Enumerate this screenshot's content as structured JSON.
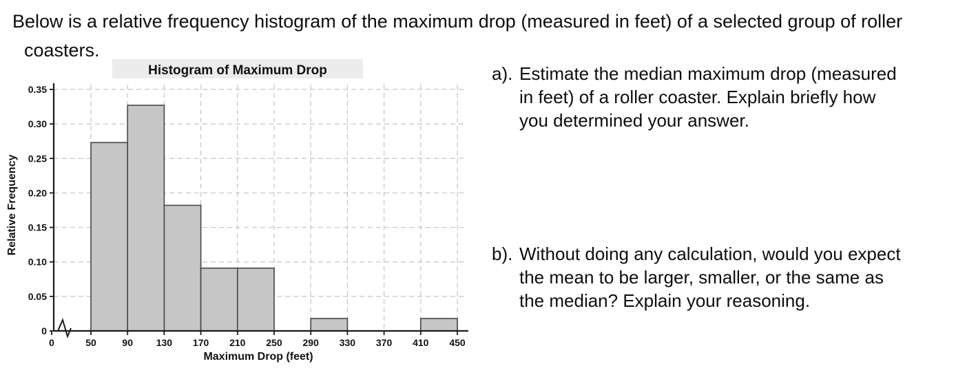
{
  "intro": {
    "lines": [
      "Below is a relative frequency histogram of the maximum drop (measured in feet) of a selected group of roller",
      "coasters."
    ]
  },
  "questions": {
    "a": {
      "label": "a).",
      "lines": [
        "Estimate the median maximum drop (measured",
        "in feet) of a roller coaster. Explain briefly how",
        "you determined your answer."
      ]
    },
    "b": {
      "label": "b).",
      "lines": [
        "Without doing any calculation, would you expect",
        "the mean to be larger, smaller, or the same as",
        "the median?  Explain your reasoning."
      ]
    }
  },
  "chart_data": {
    "type": "bar",
    "title": "Histogram of Maximum Drop",
    "xlabel": "Maximum Drop (feet)",
    "ylabel": "Relative Frequency",
    "bins": [
      {
        "range": [
          50,
          90
        ],
        "value": 0.273
      },
      {
        "range": [
          90,
          130
        ],
        "value": 0.327
      },
      {
        "range": [
          130,
          170
        ],
        "value": 0.182
      },
      {
        "range": [
          170,
          210
        ],
        "value": 0.091
      },
      {
        "range": [
          210,
          250
        ],
        "value": 0.091
      },
      {
        "range": [
          250,
          290
        ],
        "value": 0
      },
      {
        "range": [
          290,
          330
        ],
        "value": 0.018
      },
      {
        "range": [
          330,
          370
        ],
        "value": 0
      },
      {
        "range": [
          370,
          410
        ],
        "value": 0
      },
      {
        "range": [
          410,
          450
        ],
        "value": 0.018
      }
    ],
    "x_ticks": [
      0,
      50,
      90,
      130,
      170,
      210,
      250,
      290,
      330,
      370,
      410,
      450
    ],
    "y_ticks": [
      0,
      0.05,
      0.1,
      0.15,
      0.2,
      0.25,
      0.3,
      0.35
    ],
    "ylim": [
      0,
      0.35
    ],
    "grid": "dashed",
    "legend": "none",
    "axis_break_at_origin": true,
    "colors": {
      "bar_fill": "#c6c6c6",
      "bar_stroke": "#4d4d4d",
      "grid": "#c4c4c4",
      "axis": "#1a1a1a",
      "title_bg": "#ececec"
    }
  }
}
